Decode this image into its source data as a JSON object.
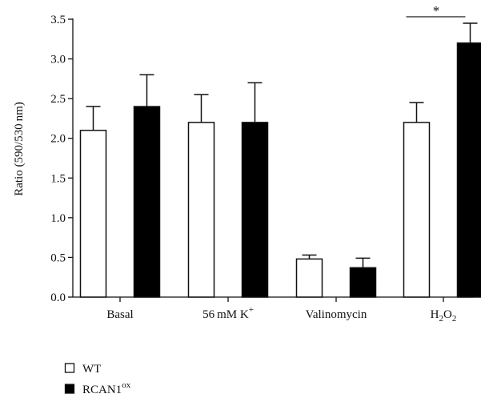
{
  "chart_data": {
    "type": "bar",
    "categories": [
      "Basal",
      "56 mM K+",
      "Valinomycin",
      "H2O2"
    ],
    "category_labels": [
      {
        "text": "Basal"
      },
      {
        "text": "56 mM K",
        "sup": "+"
      },
      {
        "text": "Valinomycin"
      },
      {
        "parts": [
          "H",
          "2",
          "O",
          "2"
        ]
      }
    ],
    "series": [
      {
        "name": "WT",
        "color": "#ffffff",
        "values": [
          2.1,
          2.2,
          0.48,
          2.2
        ],
        "errors": [
          0.3,
          0.35,
          0.05,
          0.25
        ]
      },
      {
        "name": "RCAN1ox",
        "color": "#000000",
        "values": [
          2.4,
          2.2,
          0.37,
          3.2
        ],
        "errors": [
          0.4,
          0.5,
          0.12,
          0.25
        ]
      }
    ],
    "legend": [
      {
        "text": "WT",
        "sup": ""
      },
      {
        "text": "RCAN1",
        "sup": "ox"
      }
    ],
    "title": "",
    "xlabel": "",
    "ylabel": "Ratio (590/530 nm)",
    "ylim": [
      0,
      3.5
    ],
    "yticks": [
      "0.0",
      "0.5",
      "1.0",
      "1.5",
      "2.0",
      "2.5",
      "3.0",
      "3.5"
    ],
    "annotations": [
      {
        "text": "*",
        "category": "H2O2"
      }
    ],
    "grid": false,
    "legend_position": "bottom-left"
  }
}
